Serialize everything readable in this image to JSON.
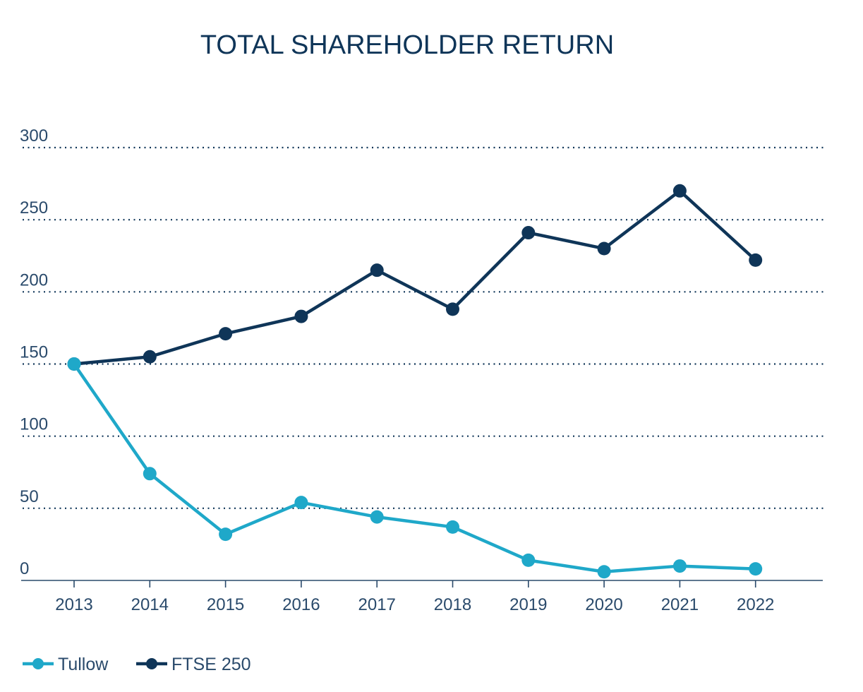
{
  "chart_data": {
    "type": "line",
    "title": "TOTAL SHAREHOLDER RETURN",
    "xlabel": "",
    "ylabel": "",
    "categories": [
      "2013",
      "2014",
      "2015",
      "2016",
      "2017",
      "2018",
      "2019",
      "2020",
      "2021",
      "2022"
    ],
    "ylim": [
      0,
      300
    ],
    "yticks": [
      "0",
      "50",
      "100",
      "150",
      "200",
      "250",
      "300"
    ],
    "ytick_values": [
      0,
      50,
      100,
      150,
      200,
      250,
      300
    ],
    "grid": "horizontal-dotted",
    "legend_position": "bottom-left",
    "series": [
      {
        "name": "Tullow",
        "color": "#1fa8c9",
        "values": [
          150,
          74,
          32,
          54,
          44,
          37,
          14,
          6,
          10,
          8
        ]
      },
      {
        "name": "FTSE 250",
        "color": "#0f3558",
        "values": [
          150,
          155,
          171,
          183,
          215,
          188,
          241,
          230,
          270,
          222
        ]
      }
    ]
  },
  "colors": {
    "axis": "#2a4a6b",
    "grid": "#0f3558",
    "title": "#0f3558"
  }
}
